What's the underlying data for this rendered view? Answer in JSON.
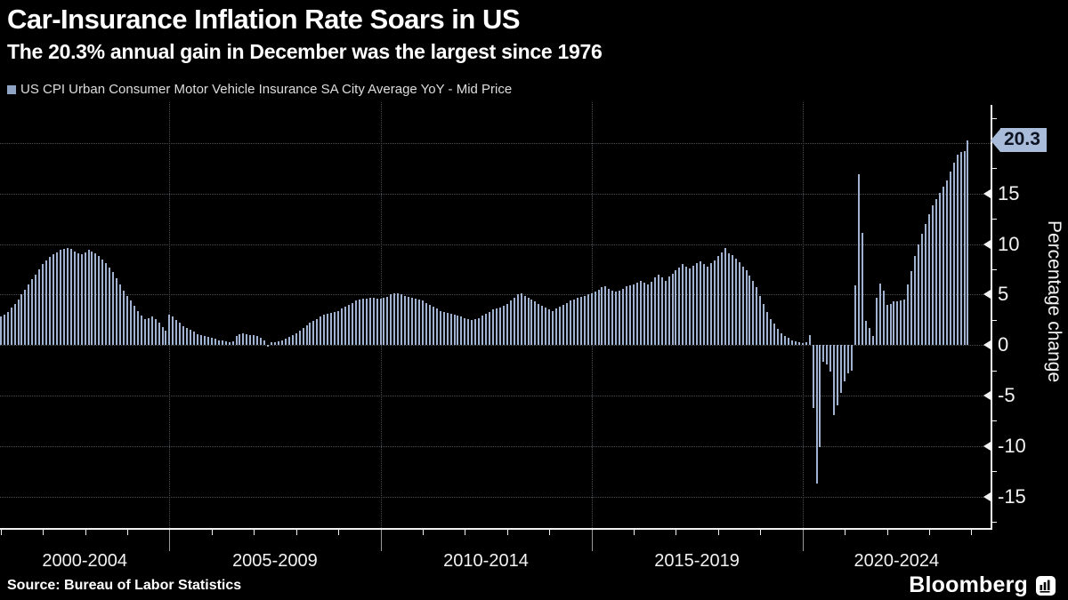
{
  "header": {
    "title": "Car-Insurance Inflation Rate Soars in US",
    "subtitle": "The 20.3% annual gain in December was the largest since 1976"
  },
  "legend": {
    "label": "US CPI Urban Consumer Motor Vehicle Insurance SA City Average YoY - Mid Price"
  },
  "footer": {
    "source": "Source: Bureau of Labor Statistics",
    "brand": "Bloomberg"
  },
  "colors": {
    "bar": "#a0b2d0",
    "legend_marker": "#8fa3c4",
    "badge_bg": "#a9bcd9",
    "badge_text": "#0d1321",
    "axis": "#f2f2f2",
    "grid": "#4b5154",
    "background": "#000000"
  },
  "chart_data": {
    "type": "bar",
    "title": "Car-Insurance Inflation Rate Soars in US",
    "subtitle": "The 20.3% annual gain in December was the largest since 1976",
    "series_name": "US CPI Urban Consumer Motor Vehicle Insurance SA City Average YoY - Mid Price",
    "ylabel": "Percentage change",
    "ylim": [
      -18,
      24
    ],
    "y_gridlines": [
      -15,
      -10,
      -5,
      0,
      5,
      10,
      15,
      20
    ],
    "y_tick_labels": [
      "-15",
      "-10",
      "-5",
      "0",
      "5",
      "10",
      "15"
    ],
    "y_tick_values": [
      -15,
      -10,
      -5,
      0,
      5,
      10,
      15
    ],
    "y_minor_step": 2.5,
    "grid": true,
    "legend_position": "top-left",
    "last_value_label": "20.3",
    "last_point": {
      "date": "2023-12",
      "value": 20.3
    },
    "x_sections": [
      "2000-2004",
      "2005-2009",
      "2010-2014",
      "2015-2019",
      "2020-2024"
    ],
    "x_divider_years": [
      2005,
      2010,
      2015,
      2020
    ],
    "start_year": 2001,
    "end_year": 2024,
    "frequency": "monthly",
    "values": [
      2.8,
      3.0,
      3.3,
      3.7,
      4.1,
      4.5,
      5.0,
      5.5,
      6.0,
      6.5,
      7.0,
      7.5,
      8.0,
      8.4,
      8.7,
      9.0,
      9.2,
      9.4,
      9.5,
      9.6,
      9.5,
      9.3,
      9.1,
      9.0,
      9.2,
      9.4,
      9.3,
      9.1,
      8.8,
      8.5,
      8.1,
      7.7,
      7.2,
      6.6,
      6.0,
      5.4,
      4.9,
      4.4,
      3.9,
      3.4,
      2.9,
      2.6,
      2.7,
      2.8,
      2.6,
      2.2,
      1.8,
      1.4,
      3.0,
      2.8,
      2.5,
      2.2,
      1.9,
      1.7,
      1.5,
      1.3,
      1.1,
      1.0,
      0.9,
      0.8,
      0.7,
      0.6,
      0.5,
      0.5,
      0.4,
      0.3,
      0.4,
      0.9,
      1.1,
      1.2,
      1.1,
      1.0,
      1.0,
      0.9,
      0.7,
      0.5,
      -0.2,
      0.3,
      0.3,
      0.4,
      0.5,
      0.6,
      0.8,
      1.0,
      1.2,
      1.4,
      1.7,
      2.0,
      2.2,
      2.4,
      2.6,
      2.8,
      3.0,
      3.1,
      3.2,
      3.3,
      3.4,
      3.6,
      3.8,
      4.0,
      4.2,
      4.4,
      4.5,
      4.6,
      4.6,
      4.7,
      4.7,
      4.6,
      4.6,
      4.7,
      4.8,
      5.0,
      5.1,
      5.1,
      5.0,
      4.9,
      4.8,
      4.7,
      4.6,
      4.5,
      4.4,
      4.2,
      4.0,
      3.8,
      3.6,
      3.4,
      3.3,
      3.2,
      3.1,
      3.0,
      2.9,
      2.8,
      2.7,
      2.6,
      2.5,
      2.6,
      2.7,
      2.9,
      3.1,
      3.3,
      3.5,
      3.6,
      3.7,
      3.9,
      4.1,
      4.4,
      4.7,
      5.0,
      5.1,
      4.9,
      4.7,
      4.5,
      4.3,
      4.1,
      3.9,
      3.7,
      3.5,
      3.4,
      3.6,
      3.8,
      4.0,
      4.2,
      4.4,
      4.5,
      4.7,
      4.8,
      4.9,
      5.0,
      5.1,
      5.3,
      5.5,
      5.7,
      5.8,
      5.6,
      5.4,
      5.3,
      5.4,
      5.6,
      5.8,
      5.9,
      6.0,
      6.2,
      6.4,
      6.2,
      6.0,
      6.3,
      6.7,
      7.0,
      6.7,
      6.4,
      6.8,
      7.1,
      7.4,
      7.7,
      8.0,
      7.8,
      7.6,
      7.9,
      8.1,
      8.3,
      8.0,
      7.8,
      8.1,
      8.4,
      8.8,
      9.2,
      9.6,
      9.1,
      8.9,
      8.6,
      8.2,
      7.8,
      7.4,
      6.9,
      6.4,
      5.7,
      4.9,
      4.1,
      3.3,
      2.6,
      2.1,
      1.6,
      1.2,
      0.9,
      0.7,
      0.5,
      0.4,
      0.3,
      0.2,
      0.3,
      1.0,
      -6.2,
      -13.7,
      -10.1,
      -1.7,
      -1.9,
      -2.6,
      -6.9,
      -6.0,
      -4.7,
      -3.6,
      -2.8,
      -2.5,
      5.9,
      16.9,
      11.1,
      2.4,
      1.7,
      0.9,
      4.7,
      6.1,
      5.4,
      4.0,
      4.1,
      4.3,
      4.3,
      4.4,
      4.5,
      6.0,
      7.3,
      8.8,
      10.0,
      11.0,
      12.0,
      13.0,
      13.8,
      14.5,
      15.1,
      15.7,
      16.3,
      17.2,
      18.1,
      18.9,
      19.1,
      19.2,
      20.3
    ]
  }
}
